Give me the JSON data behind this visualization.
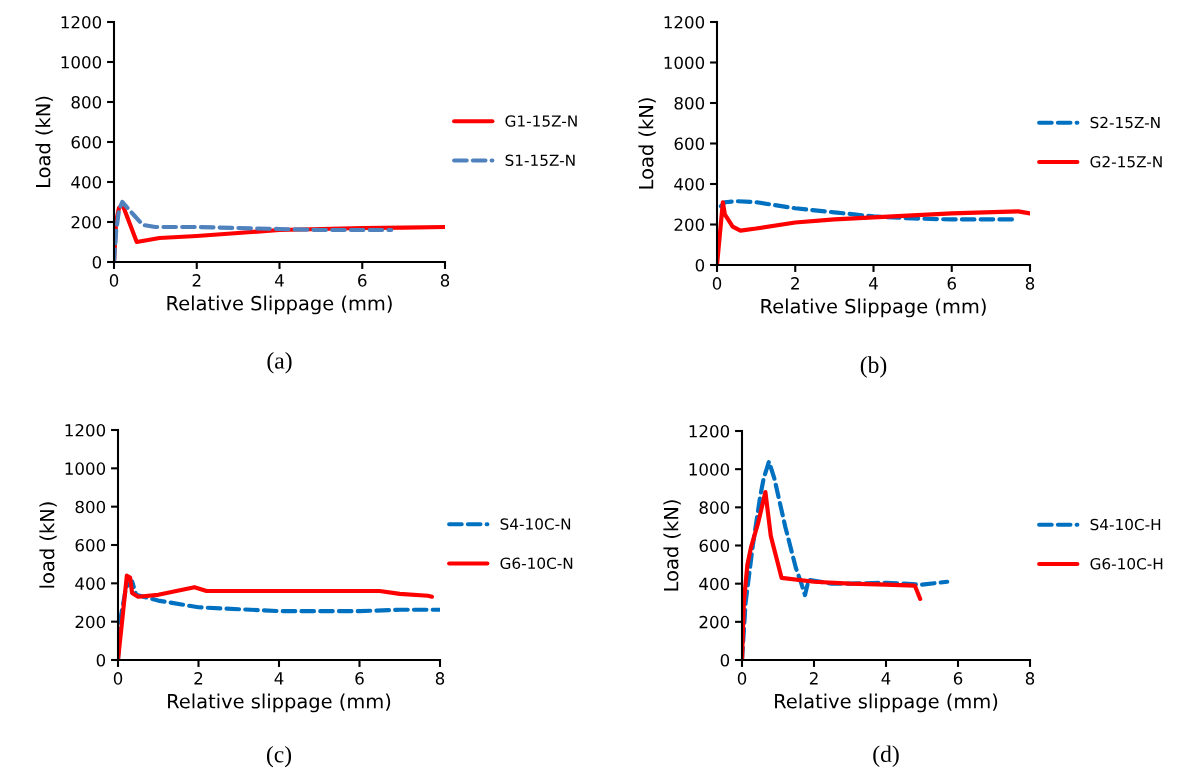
{
  "chart_data": [
    {
      "type": "line",
      "xlabel": "Relative Slippage (mm)",
      "ylabel": "Load (kN)",
      "annotations": [
        "(a)"
      ],
      "xlim": [
        0,
        8
      ],
      "xticks": [
        0,
        2,
        4,
        6,
        8
      ],
      "ylim": [
        0,
        1200
      ],
      "yticks": [
        0,
        200,
        400,
        600,
        800,
        1000,
        1200
      ],
      "grid": false,
      "legend": "right",
      "marker": "none",
      "series": [
        {
          "name": "G1-15Z-N",
          "color": "#ff0000",
          "line_style": "solid",
          "x": [
            0,
            0.05,
            0.12,
            0.2,
            0.55,
            1.1,
            2,
            3,
            4,
            5,
            6,
            7,
            8
          ],
          "values": [
            0,
            200,
            270,
            290,
            100,
            120,
            130,
            145,
            160,
            165,
            170,
            172,
            175
          ]
        },
        {
          "name": "S1-15Z-N",
          "color": "#4f81bd",
          "line_style": "dashed",
          "x": [
            0,
            0.05,
            0.12,
            0.2,
            0.5,
            0.7,
            1,
            2,
            3,
            4,
            5,
            6,
            6.7
          ],
          "values": [
            0,
            150,
            260,
            300,
            230,
            185,
            175,
            175,
            170,
            165,
            160,
            160,
            160
          ]
        }
      ]
    },
    {
      "type": "line",
      "xlabel": "Relative Slippage (mm)",
      "ylabel": "Load (kN)",
      "annotations": [
        "(b)"
      ],
      "xlim": [
        0,
        8
      ],
      "xticks": [
        0,
        2,
        4,
        6,
        8
      ],
      "ylim": [
        0,
        1200
      ],
      "yticks": [
        0,
        200,
        400,
        600,
        800,
        1000,
        1200
      ],
      "grid": false,
      "legend": "right",
      "marker": "none",
      "series": [
        {
          "name": "S2-15Z-N",
          "color": "#0070c0",
          "line_style": "dashed",
          "x": [
            0.1,
            0.2,
            0.5,
            1,
            2,
            3,
            4,
            5,
            6,
            7.6
          ],
          "values": [
            290,
            310,
            315,
            310,
            280,
            260,
            240,
            230,
            225,
            225
          ]
        },
        {
          "name": "G2-15Z-N",
          "color": "#ff0000",
          "line_style": "solid",
          "x": [
            0,
            0.15,
            0.2,
            0.4,
            0.6,
            1,
            2,
            3,
            4,
            6,
            7.7,
            8
          ],
          "values": [
            0,
            310,
            250,
            190,
            170,
            180,
            210,
            225,
            235,
            255,
            265,
            255
          ]
        }
      ]
    },
    {
      "type": "line",
      "xlabel": "Relative slippage (mm)",
      "ylabel": "load (kN)",
      "annotations": [
        "(c)"
      ],
      "xlim": [
        0,
        8
      ],
      "xticks": [
        0,
        2,
        4,
        6,
        8
      ],
      "ylim": [
        0,
        1200
      ],
      "yticks": [
        0,
        200,
        400,
        600,
        800,
        1000,
        1200
      ],
      "grid": false,
      "legend": "right",
      "marker": "none",
      "series": [
        {
          "name": "S4-10C-N",
          "color": "#0070c0",
          "line_style": "dashed",
          "x": [
            0,
            0.05,
            0.2,
            0.35,
            0.45,
            1,
            2,
            3,
            4,
            6,
            7,
            8
          ],
          "values": [
            0,
            200,
            380,
            410,
            340,
            310,
            275,
            265,
            255,
            255,
            262,
            262
          ]
        },
        {
          "name": "G6-10C-N",
          "color": "#ff0000",
          "line_style": "solid",
          "x": [
            0,
            0.22,
            0.3,
            0.35,
            0.5,
            1,
            1.9,
            2.2,
            6.5,
            7,
            7.7,
            7.8
          ],
          "values": [
            0,
            440,
            430,
            350,
            330,
            340,
            380,
            360,
            360,
            345,
            335,
            330
          ]
        }
      ]
    },
    {
      "type": "line",
      "xlabel": "Relative slippage (mm)",
      "ylabel": "Load (kN)",
      "annotations": [
        "(d)"
      ],
      "xlim": [
        0,
        8
      ],
      "xticks": [
        0,
        2,
        4,
        6,
        8
      ],
      "ylim": [
        0,
        1200
      ],
      "yticks": [
        0,
        200,
        400,
        600,
        800,
        1000,
        1200
      ],
      "grid": false,
      "legend": "right",
      "marker": "none",
      "series": [
        {
          "name": "S4-10C-H",
          "color": "#0070c0",
          "line_style": "dashed",
          "x": [
            0,
            0.1,
            0.3,
            0.5,
            0.6,
            0.75,
            0.9,
            1.2,
            1.5,
            1.65,
            1.75,
            1.85,
            2.5,
            3,
            4,
            4.5,
            5,
            5.7
          ],
          "values": [
            0,
            300,
            600,
            850,
            950,
            1040,
            950,
            700,
            480,
            400,
            340,
            420,
            400,
            400,
            405,
            400,
            395,
            410
          ]
        },
        {
          "name": "G6-10C-H",
          "color": "#ff0000",
          "line_style": "solid",
          "x": [
            0,
            0.05,
            0.15,
            0.25,
            0.45,
            0.65,
            0.8,
            1.1,
            2,
            3,
            4,
            4.8,
            4.95
          ],
          "values": [
            0,
            300,
            500,
            590,
            720,
            880,
            650,
            430,
            410,
            400,
            395,
            390,
            320
          ]
        }
      ]
    }
  ]
}
